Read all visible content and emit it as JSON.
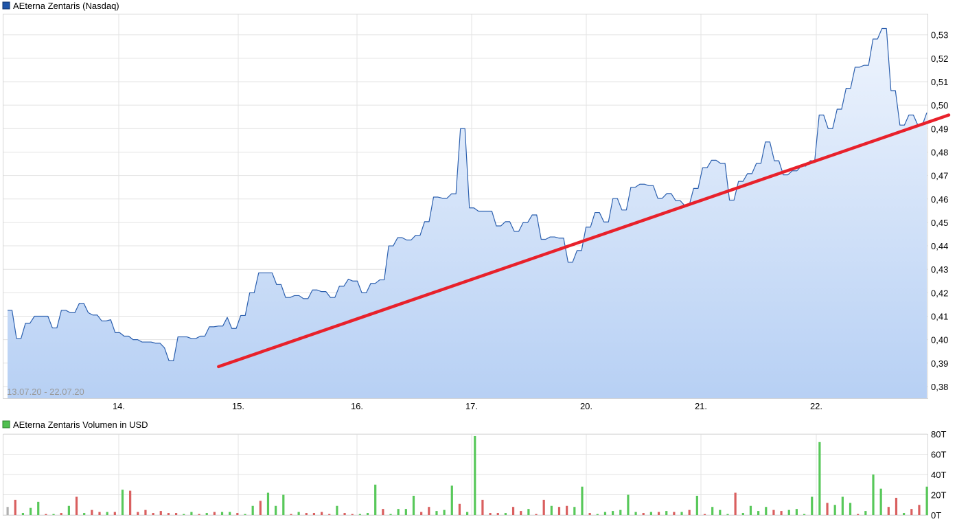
{
  "chart_data": [
    {
      "type": "line",
      "title": "AEterna Zentaris (Nasdaq)",
      "date_range": "13.07.20 - 22.07.20",
      "x_tick_labels": [
        "14.",
        "15.",
        "16.",
        "17.",
        "20.",
        "21.",
        "22."
      ],
      "y_tick_labels": [
        "0,38",
        "0,39",
        "0,40",
        "0,41",
        "0,42",
        "0,43",
        "0,44",
        "0,45",
        "0,46",
        "0,47",
        "0,48",
        "0,49",
        "0,50",
        "0,51",
        "0,52",
        "0,53"
      ],
      "ylim": [
        0.375,
        0.539
      ],
      "grid": true,
      "legend": "top-left",
      "colors": {
        "line": "#2b5fae",
        "fill_top": "#eef4fd",
        "fill_bottom": "#b7d0f4",
        "trend": "#e8212b",
        "legend_marker": "#1f55a8"
      },
      "series": [
        {
          "name": "AEterna Zentaris (Nasdaq)",
          "values": [
            0.4125,
            0.4125,
            0.4005,
            0.4005,
            0.407,
            0.407,
            0.41,
            0.41,
            0.41,
            0.41,
            0.405,
            0.405,
            0.4125,
            0.4125,
            0.4115,
            0.4115,
            0.4155,
            0.4155,
            0.4115,
            0.4105,
            0.4105,
            0.408,
            0.408,
            0.4085,
            0.403,
            0.403,
            0.4015,
            0.4015,
            0.4,
            0.4,
            0.399,
            0.399,
            0.399,
            0.3985,
            0.3985,
            0.3965,
            0.391,
            0.391,
            0.4012,
            0.4012,
            0.4012,
            0.4005,
            0.4005,
            0.4015,
            0.4015,
            0.4055,
            0.4055,
            0.4058,
            0.4058,
            0.4095,
            0.4048,
            0.4048,
            0.4103,
            0.4103,
            0.42,
            0.42,
            0.4285,
            0.4285,
            0.4285,
            0.4285,
            0.4235,
            0.4235,
            0.418,
            0.418,
            0.4188,
            0.4188,
            0.4175,
            0.4175,
            0.4212,
            0.4212,
            0.4205,
            0.4205,
            0.418,
            0.418,
            0.4228,
            0.4228,
            0.4258,
            0.425,
            0.425,
            0.42,
            0.42,
            0.424,
            0.424,
            0.4255,
            0.4255,
            0.44,
            0.44,
            0.4435,
            0.4435,
            0.4425,
            0.4425,
            0.4445,
            0.4445,
            0.4503,
            0.4503,
            0.4608,
            0.4608,
            0.4603,
            0.4603,
            0.4622,
            0.4622,
            0.49,
            0.49,
            0.4562,
            0.4562,
            0.4548,
            0.4548,
            0.4548,
            0.4548,
            0.4485,
            0.4485,
            0.4503,
            0.4503,
            0.4462,
            0.4462,
            0.45,
            0.45,
            0.4532,
            0.4532,
            0.4428,
            0.4428,
            0.4438,
            0.4438,
            0.4433,
            0.4433,
            0.433,
            0.433,
            0.438,
            0.438,
            0.448,
            0.448,
            0.4542,
            0.4542,
            0.4502,
            0.4502,
            0.4602,
            0.4602,
            0.4553,
            0.4553,
            0.465,
            0.465,
            0.4663,
            0.4663,
            0.4657,
            0.4657,
            0.4603,
            0.4603,
            0.4623,
            0.4623,
            0.4593,
            0.4593,
            0.4572,
            0.4572,
            0.4645,
            0.4645,
            0.4733,
            0.4733,
            0.4765,
            0.4765,
            0.4752,
            0.4752,
            0.4595,
            0.4595,
            0.4675,
            0.4675,
            0.4708,
            0.4708,
            0.4752,
            0.4752,
            0.4843,
            0.4843,
            0.4763,
            0.4763,
            0.4703,
            0.4703,
            0.472,
            0.472,
            0.474,
            0.474,
            0.4763,
            0.4763,
            0.4958,
            0.4958,
            0.49,
            0.49,
            0.4983,
            0.4983,
            0.5072,
            0.5072,
            0.5162,
            0.5162,
            0.517,
            0.517,
            0.5282,
            0.5282,
            0.5327,
            0.5327,
            0.5062,
            0.5062,
            0.4915,
            0.4915,
            0.4958,
            0.4958,
            0.4915,
            0.4915,
            0.4968
          ]
        }
      ],
      "trendline": {
        "from": [
          0.2295,
          0.3885
        ],
        "to": [
          1.0,
          0.4955
        ]
      }
    },
    {
      "type": "bar",
      "title": "AEterna Zentaris Volumen in USD",
      "x_tick_labels": [
        "14.",
        "15.",
        "16.",
        "17.",
        "20.",
        "21.",
        "22."
      ],
      "y_tick_labels": [
        "0T",
        "20T",
        "40T",
        "60T",
        "80T"
      ],
      "ylim": [
        0,
        80
      ],
      "grid": true,
      "legend": "top-left",
      "colors": {
        "up": "#58c85a",
        "down": "#d95f5f",
        "neutral": "#b0b0b0",
        "legend_marker": "#4fbf4f"
      },
      "series": [
        {
          "name": "AEterna Zentaris Volumen in USD",
          "values": [
            8,
            15,
            2,
            7,
            13,
            1,
            1,
            2,
            9,
            18,
            2,
            5,
            3,
            3,
            3,
            25,
            24,
            3,
            5,
            2,
            4,
            2,
            2,
            1,
            3,
            1,
            2,
            3,
            3,
            3,
            2,
            1,
            9,
            14,
            22,
            9,
            20,
            1,
            3,
            2,
            2,
            3,
            1,
            9,
            2,
            1,
            1,
            2,
            30,
            6,
            1,
            6,
            6,
            19,
            3,
            8,
            4,
            5,
            29,
            11,
            3,
            78,
            15,
            2,
            2,
            2,
            8,
            4,
            6,
            1,
            15,
            9,
            8,
            9,
            8,
            28,
            2,
            1,
            3,
            4,
            5,
            20,
            3,
            2,
            3,
            3,
            4,
            3,
            3,
            5,
            19,
            1,
            8,
            5,
            1,
            22,
            2,
            9,
            4,
            8,
            5,
            4,
            5,
            6,
            1,
            18,
            72,
            12,
            10,
            18,
            12,
            1,
            4,
            40,
            26,
            8,
            17,
            2,
            6,
            10,
            28
          ],
          "colors": [
            "neutral",
            "down",
            "up",
            "up",
            "up",
            "down",
            "up",
            "down",
            "up",
            "down",
            "up",
            "down",
            "down",
            "up",
            "down",
            "up",
            "down",
            "down",
            "down",
            "down",
            "down",
            "down",
            "down",
            "up",
            "up",
            "down",
            "up",
            "down",
            "up",
            "up",
            "down",
            "up",
            "up",
            "down",
            "up",
            "up",
            "up",
            "down",
            "up",
            "down",
            "down",
            "down",
            "down",
            "up",
            "down",
            "down",
            "up",
            "up",
            "up",
            "down",
            "up",
            "up",
            "up",
            "up",
            "down",
            "down",
            "up",
            "up",
            "up",
            "down",
            "up",
            "up",
            "down",
            "down",
            "down",
            "up",
            "down",
            "down",
            "up",
            "down",
            "down",
            "up",
            "down",
            "down",
            "up",
            "up",
            "down",
            "up",
            "up",
            "up",
            "up",
            "up",
            "up",
            "down",
            "up",
            "down",
            "up",
            "down",
            "up",
            "down",
            "up",
            "down",
            "up",
            "up",
            "up",
            "down",
            "up",
            "up",
            "up",
            "up",
            "down",
            "down",
            "up",
            "up",
            "up",
            "up",
            "up",
            "down",
            "up",
            "up",
            "up",
            "down",
            "up",
            "up",
            "up",
            "down",
            "down",
            "up",
            "down",
            "down",
            "up"
          ]
        }
      ]
    }
  ]
}
